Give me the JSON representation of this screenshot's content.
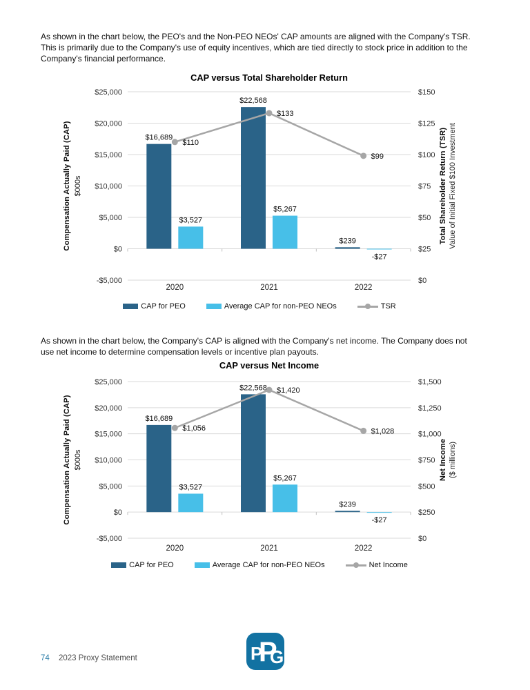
{
  "page": {
    "paragraph1": "As shown in the chart below, the PEO's and the Non-PEO NEOs' CAP amounts are aligned with the Company's TSR.\nThis is primarily due to the Company's use of equity incentives, which are tied directly to stock price in addition to the\nCompany's financial performance.",
    "paragraph2": "As shown in the chart below, the Company's CAP is aligned with the Company's net income. The Company does not\nuse net income to determine compensation levels or incentive plan payouts.",
    "footer": {
      "page_number": "74",
      "label": "2023 Proxy Statement"
    }
  },
  "logo": {
    "letters": [
      "P",
      "P",
      "G"
    ],
    "label": "PPG"
  },
  "colors": {
    "bar_dark_blue": "#2A6388",
    "bar_light_blue": "#47BFE8",
    "line_gray": "#A6A6A6",
    "gridline": "#D9D9D9",
    "axis_tick": "#BFBFBF",
    "page_number_blue": "#2E7FA9",
    "footer_text_gray": "#4E4E4E",
    "logo_blue": "#1272A2"
  },
  "chart_data": [
    {
      "type": "bar+line",
      "title": "CAP versus Total Shareholder Return",
      "categories": [
        "2020",
        "2021",
        "2022"
      ],
      "grid": true,
      "legend_position": "bottom",
      "bar_series": [
        {
          "name": "CAP for PEO",
          "color": "#2A6388",
          "values": [
            16689,
            22568,
            239
          ],
          "labels": [
            "$16,689",
            "$22,568",
            "$239"
          ]
        },
        {
          "name": "Average CAP for non-PEO NEOs",
          "color": "#47BFE8",
          "values": [
            3527,
            5267,
            -27
          ],
          "labels": [
            "$3,527",
            "$5,267",
            "-$27"
          ]
        }
      ],
      "line_series": {
        "name": "TSR",
        "color": "#A6A6A6",
        "values": [
          110,
          133,
          99
        ],
        "labels": [
          "$110",
          "$133",
          "$99"
        ]
      },
      "left_axis": {
        "title": "Compensation Actually Paid (CAP)",
        "subtitle": "$000s",
        "min": -5000,
        "max": 25000,
        "ticks": [
          "$25,000",
          "$20,000",
          "$15,000",
          "$10,000",
          "$5,000",
          "$0",
          "-$5,000"
        ]
      },
      "right_axis": {
        "title": "Total Shareholder Return (TSR)",
        "subtitle": "Value of Initial Fixed $100 Investment",
        "min": 0,
        "max": 150,
        "ticks": [
          "$150",
          "$125",
          "$100",
          "$75",
          "$50",
          "$25",
          "$0"
        ]
      }
    },
    {
      "type": "bar+line",
      "title": "CAP versus Net Income",
      "categories": [
        "2020",
        "2021",
        "2022"
      ],
      "grid": true,
      "legend_position": "bottom",
      "bar_series": [
        {
          "name": "CAP for PEO",
          "color": "#2A6388",
          "values": [
            16689,
            22568,
            239
          ],
          "labels": [
            "$16,689",
            "$22,568",
            "$239"
          ]
        },
        {
          "name": "Average CAP for non-PEO NEOs",
          "color": "#47BFE8",
          "values": [
            3527,
            5267,
            -27
          ],
          "labels": [
            "$3,527",
            "$5,267",
            "-$27"
          ]
        }
      ],
      "line_series": {
        "name": "Net Income",
        "color": "#A6A6A6",
        "values": [
          1056,
          1420,
          1028
        ],
        "labels": [
          "$1,056",
          "$1,420",
          "$1,028"
        ]
      },
      "left_axis": {
        "title": "Compensation Actually Paid (CAP)",
        "subtitle": "$000s",
        "min": -5000,
        "max": 25000,
        "ticks": [
          "$25,000",
          "$20,000",
          "$15,000",
          "$10,000",
          "$5,000",
          "$0",
          "-$5,000"
        ]
      },
      "right_axis": {
        "title": "Net Income",
        "subtitle": "($ millions)",
        "min": 0,
        "max": 1500,
        "ticks": [
          "$1,500",
          "$1,250",
          "$1,000",
          "$750",
          "$500",
          "$250",
          "$0"
        ]
      }
    }
  ]
}
